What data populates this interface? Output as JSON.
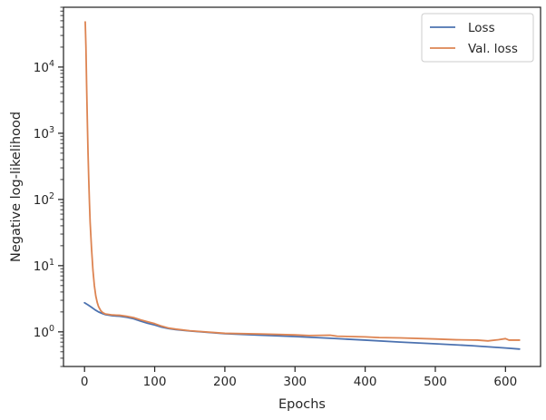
{
  "chart_data": {
    "type": "line",
    "xlabel": "Epochs",
    "ylabel": "Negative log-likelihood",
    "xlim": [
      -30,
      650
    ],
    "ylim": [
      0.3,
      80000
    ],
    "yscale": "log",
    "grid": false,
    "legend_position": "top-right",
    "x_ticks": [
      0,
      100,
      200,
      300,
      400,
      500,
      600
    ],
    "x_tick_labels": [
      "0",
      "100",
      "200",
      "300",
      "400",
      "500",
      "600"
    ],
    "y_ticks": [
      1,
      10,
      100,
      1000,
      10000
    ],
    "y_tick_labels": [
      {
        "base": "10",
        "exp": "0"
      },
      {
        "base": "10",
        "exp": "1"
      },
      {
        "base": "10",
        "exp": "2"
      },
      {
        "base": "10",
        "exp": "3"
      },
      {
        "base": "10",
        "exp": "4"
      }
    ],
    "series": [
      {
        "name": "Loss",
        "color": "#4c72b0",
        "points": [
          [
            0,
            2.75
          ],
          [
            5,
            2.55
          ],
          [
            10,
            2.35
          ],
          [
            15,
            2.15
          ],
          [
            20,
            2.0
          ],
          [
            25,
            1.9
          ],
          [
            30,
            1.82
          ],
          [
            40,
            1.75
          ],
          [
            50,
            1.72
          ],
          [
            60,
            1.66
          ],
          [
            70,
            1.58
          ],
          [
            80,
            1.45
          ],
          [
            90,
            1.35
          ],
          [
            100,
            1.27
          ],
          [
            110,
            1.18
          ],
          [
            120,
            1.12
          ],
          [
            130,
            1.08
          ],
          [
            150,
            1.03
          ],
          [
            200,
            0.94
          ],
          [
            250,
            0.89
          ],
          [
            300,
            0.85
          ],
          [
            350,
            0.8
          ],
          [
            400,
            0.75
          ],
          [
            450,
            0.7
          ],
          [
            500,
            0.66
          ],
          [
            550,
            0.62
          ],
          [
            600,
            0.57
          ],
          [
            620,
            0.55
          ]
        ]
      },
      {
        "name": "Val. loss",
        "color": "#dd8452",
        "points": [
          [
            1,
            48000
          ],
          [
            2,
            20000
          ],
          [
            3,
            5000
          ],
          [
            4,
            1500
          ],
          [
            5,
            500
          ],
          [
            6,
            200
          ],
          [
            7,
            90
          ],
          [
            8,
            45
          ],
          [
            10,
            18
          ],
          [
            12,
            8.5
          ],
          [
            14,
            5
          ],
          [
            16,
            3.5
          ],
          [
            18,
            2.8
          ],
          [
            20,
            2.4
          ],
          [
            23,
            2.1
          ],
          [
            26,
            1.95
          ],
          [
            30,
            1.86
          ],
          [
            40,
            1.8
          ],
          [
            50,
            1.78
          ],
          [
            60,
            1.72
          ],
          [
            70,
            1.64
          ],
          [
            80,
            1.52
          ],
          [
            90,
            1.42
          ],
          [
            100,
            1.33
          ],
          [
            110,
            1.22
          ],
          [
            120,
            1.14
          ],
          [
            130,
            1.1
          ],
          [
            150,
            1.04
          ],
          [
            200,
            0.95
          ],
          [
            250,
            0.93
          ],
          [
            300,
            0.9
          ],
          [
            320,
            0.88
          ],
          [
            350,
            0.89
          ],
          [
            360,
            0.86
          ],
          [
            400,
            0.84
          ],
          [
            420,
            0.82
          ],
          [
            450,
            0.81
          ],
          [
            500,
            0.78
          ],
          [
            530,
            0.76
          ],
          [
            560,
            0.75
          ],
          [
            575,
            0.73
          ],
          [
            590,
            0.76
          ],
          [
            600,
            0.79
          ],
          [
            605,
            0.75
          ],
          [
            620,
            0.75
          ]
        ]
      }
    ]
  }
}
